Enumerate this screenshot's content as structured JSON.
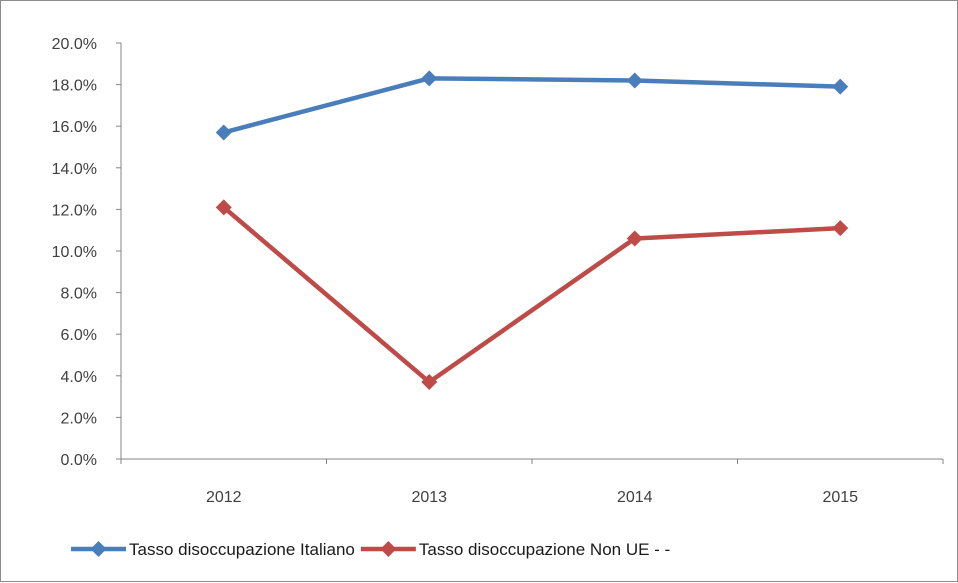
{
  "chart_data": {
    "type": "line",
    "categories": [
      "2012",
      "2013",
      "2014",
      "2015"
    ],
    "ylim": [
      0,
      20
    ],
    "ytick_step": 2,
    "ytick_format": "percent_1dp",
    "grid": false,
    "legend_position": "bottom",
    "series": [
      {
        "name": "Tasso disoccupazione Italiano",
        "color": "#4a7ebb",
        "marker": "diamond",
        "values": [
          15.7,
          18.3,
          18.2,
          17.9
        ]
      },
      {
        "name": "Tasso disoccupazione Non UE  -    -",
        "color": "#be4b48",
        "marker": "diamond",
        "values": [
          12.1,
          3.7,
          10.6,
          11.1
        ]
      }
    ],
    "title": "",
    "xlabel": "",
    "ylabel": ""
  }
}
